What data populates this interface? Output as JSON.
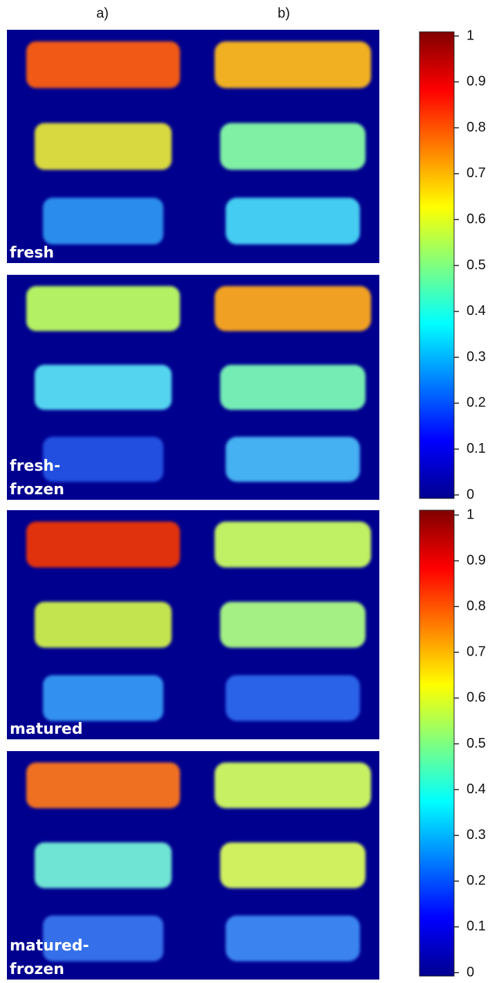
{
  "columns": [
    "a)",
    "b)"
  ],
  "panels": [
    {
      "label": [
        "fresh"
      ]
    },
    {
      "label": [
        "fresh-",
        "frozen"
      ]
    },
    {
      "label": [
        "matured"
      ]
    },
    {
      "label": [
        "matured-",
        "frozen"
      ]
    }
  ],
  "colorbars": [
    {
      "lim": [
        0,
        1
      ],
      "ticks": [
        0,
        0.1,
        0.2,
        0.3,
        0.4,
        0.5,
        0.6,
        0.7,
        0.8,
        0.9,
        1
      ]
    },
    {
      "lim": [
        0,
        1
      ],
      "ticks": [
        0,
        0.1,
        0.2,
        0.3,
        0.4,
        0.5,
        0.6,
        0.7,
        0.8,
        0.9,
        1
      ]
    }
  ]
}
